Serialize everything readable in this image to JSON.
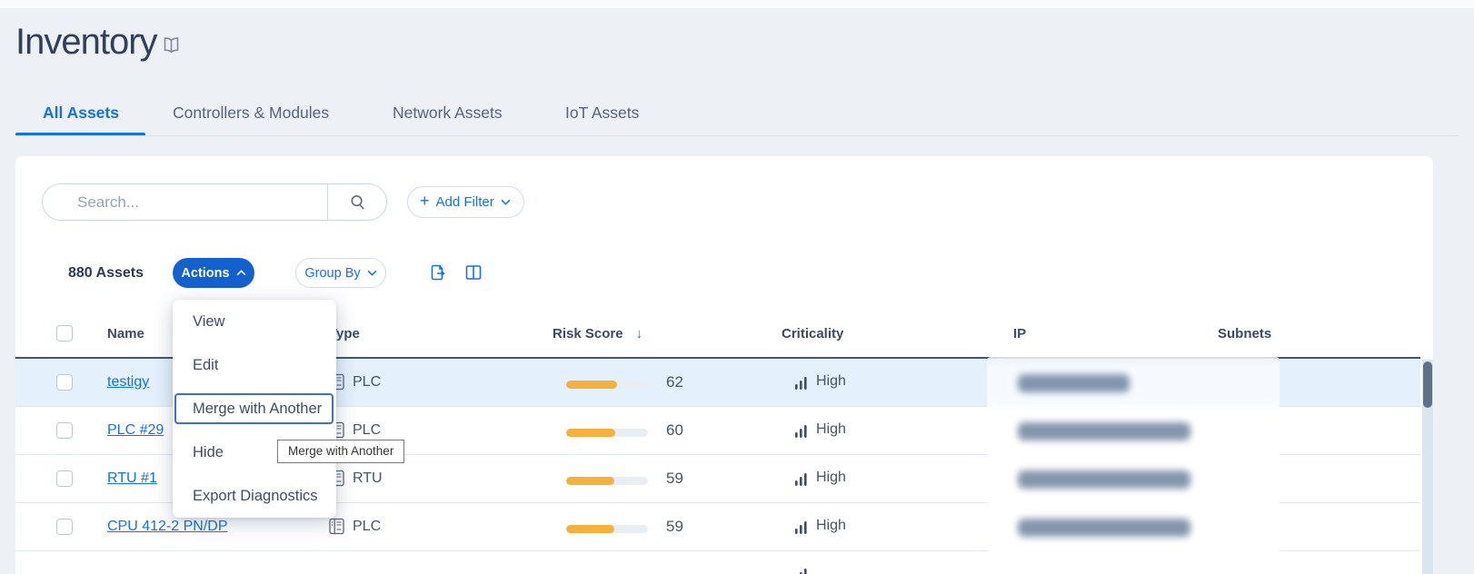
{
  "header": {
    "title": "Inventory"
  },
  "tabs": [
    {
      "label": "All Assets",
      "active": true
    },
    {
      "label": "Controllers & Modules",
      "active": false
    },
    {
      "label": "Network Assets",
      "active": false
    },
    {
      "label": "IoT Assets",
      "active": false
    }
  ],
  "filters": {
    "search_placeholder": "Search...",
    "add_filter_label": "Add Filter"
  },
  "toolbar": {
    "asset_count": "880 Assets",
    "actions_label": "Actions",
    "group_by_label": "Group By"
  },
  "actions_menu": {
    "items": [
      "View",
      "Edit",
      "Merge with Another",
      "Hide",
      "Export Diagnostics"
    ],
    "highlighted_item": "Merge with Another"
  },
  "tooltip": {
    "text": "Merge with Another"
  },
  "table": {
    "columns": [
      "Name",
      "Type",
      "Risk Score",
      "Criticality",
      "IP",
      "Subnets"
    ],
    "sorted_by": {
      "column": "Risk Score",
      "direction": "desc"
    },
    "rows": [
      {
        "name": "testigy",
        "type": "PLC",
        "risk_score": 62,
        "criticality": "High",
        "highlighted": true,
        "ip_redacted": true
      },
      {
        "name": "PLC #29",
        "type": "PLC",
        "risk_score": 60,
        "criticality": "High",
        "highlighted": false,
        "ip_redacted": true
      },
      {
        "name": "RTU #1",
        "type": "RTU",
        "risk_score": 59,
        "criticality": "High",
        "highlighted": false,
        "ip_redacted": true
      },
      {
        "name": "CPU 412-2 PN/DP",
        "type": "PLC",
        "risk_score": 59,
        "criticality": "High",
        "highlighted": false,
        "ip_redacted": true
      }
    ]
  },
  "icons": {
    "title": "book-icon",
    "search": "magnifier-icon",
    "add_filter": "plus-icon + chevron-down-icon",
    "actions": "chevron-up-icon",
    "group_by": "chevron-down-icon",
    "export": "export-file-icon",
    "columns": "columns-icon",
    "sort": "arrow-down-icon",
    "type": "plc-device-icon",
    "criticality": "signal-bars-icon"
  },
  "colors": {
    "accent_blue": "#1372e8",
    "actions_button_bg": "#1261ce",
    "risk_bar_fill": "#f6b13c",
    "row_highlight_bg": "#e4f0fc",
    "title_text": "#31405a",
    "page_bg": "#edf1f6"
  }
}
